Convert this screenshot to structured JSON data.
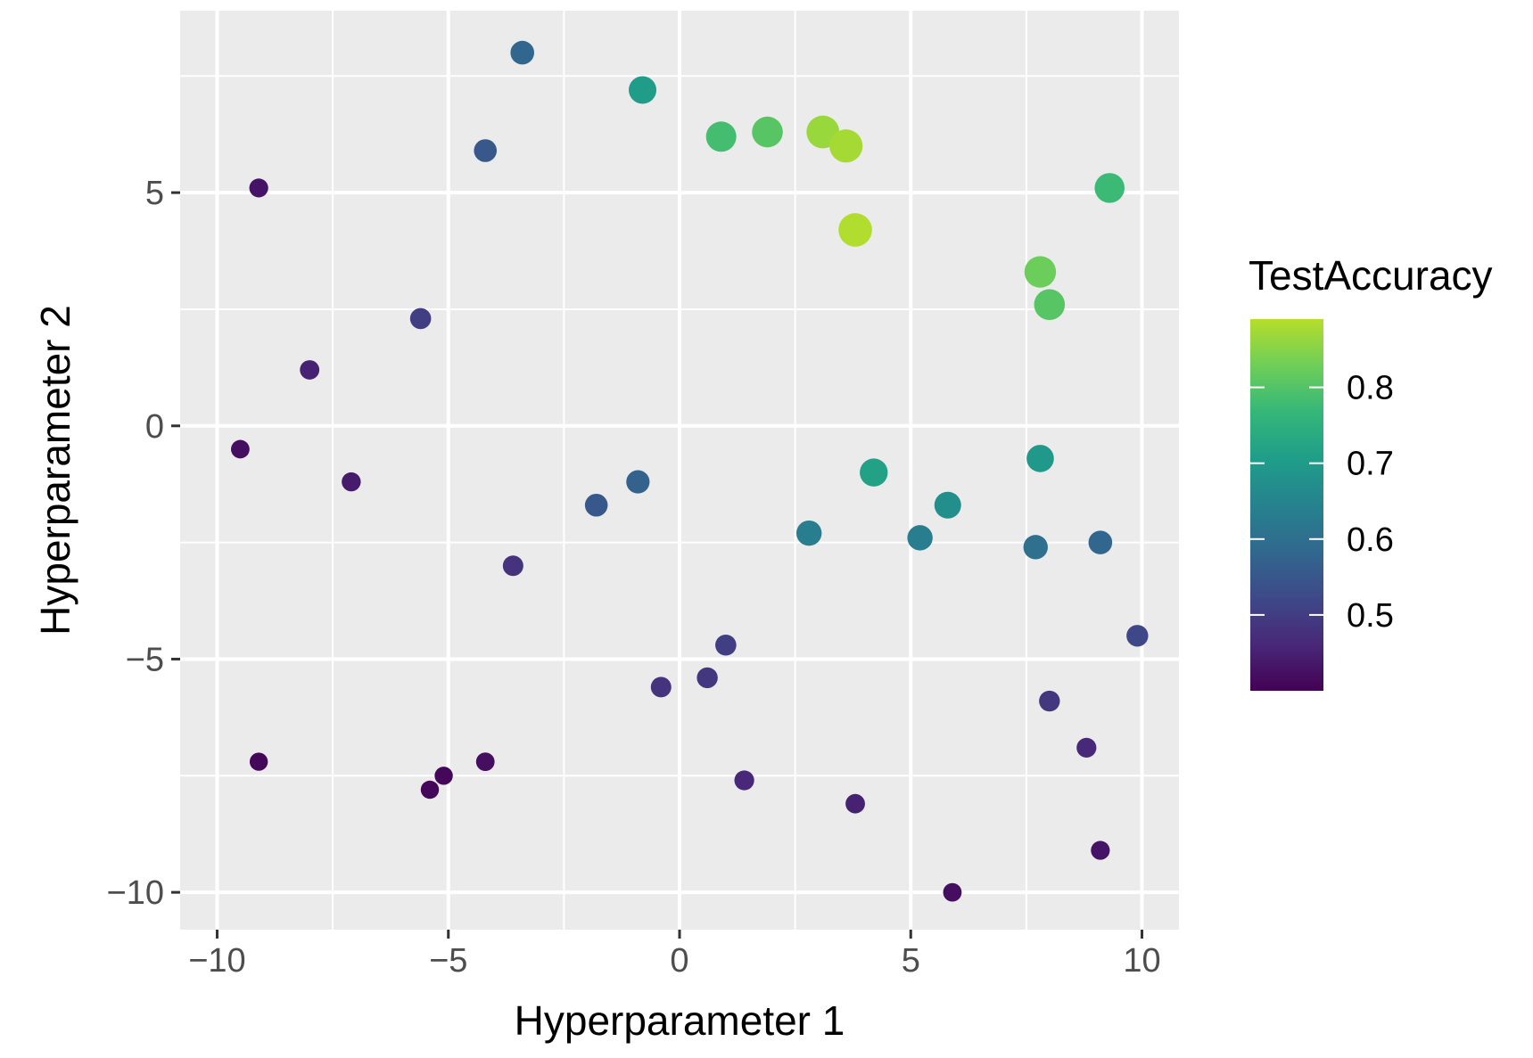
{
  "chart_data": {
    "type": "scatter",
    "title": "",
    "xlabel": "Hyperparameter 1",
    "ylabel": "Hyperparameter 2",
    "xlim": [
      -10.8,
      10.8
    ],
    "ylim": [
      -10.8,
      8.9
    ],
    "x_ticks": [
      -10,
      -5,
      0,
      5,
      10
    ],
    "x_tick_labels": [
      "−10",
      "−5",
      "0",
      "5",
      "10"
    ],
    "y_ticks": [
      -10,
      -5,
      0,
      5
    ],
    "y_tick_labels": [
      "−10",
      "−5",
      "0",
      "5"
    ],
    "grid": true,
    "legend": {
      "title": "TestAccuracy",
      "position": "right",
      "range": [
        0.4,
        0.89
      ],
      "ticks": [
        0.5,
        0.6,
        0.7,
        0.8
      ],
      "tick_labels": [
        "0.5",
        "0.6",
        "0.7",
        "0.8"
      ]
    },
    "colors": {
      "panel_background": "#ebebeb",
      "grid": "#ffffff",
      "viridis": [
        "#440154",
        "#482878",
        "#3e4989",
        "#31688e",
        "#26828e",
        "#1f9e89",
        "#35b779",
        "#6ece58",
        "#b5de2b",
        "#fde725"
      ]
    },
    "points": [
      {
        "x": -9.1,
        "y": 5.1,
        "acc": 0.43
      },
      {
        "x": -3.4,
        "y": 8.0,
        "acc": 0.58
      },
      {
        "x": -0.8,
        "y": 7.2,
        "acc": 0.7
      },
      {
        "x": -4.2,
        "y": 5.9,
        "acc": 0.55
      },
      {
        "x": 0.9,
        "y": 6.2,
        "acc": 0.78
      },
      {
        "x": 1.9,
        "y": 6.3,
        "acc": 0.8
      },
      {
        "x": 3.1,
        "y": 6.3,
        "acc": 0.86
      },
      {
        "x": 3.6,
        "y": 6.0,
        "acc": 0.87
      },
      {
        "x": 3.8,
        "y": 4.2,
        "acc": 0.88
      },
      {
        "x": 9.3,
        "y": 5.1,
        "acc": 0.77
      },
      {
        "x": 7.8,
        "y": 3.3,
        "acc": 0.82
      },
      {
        "x": 8.0,
        "y": 2.6,
        "acc": 0.8
      },
      {
        "x": -5.6,
        "y": 2.3,
        "acc": 0.5
      },
      {
        "x": -8.0,
        "y": 1.2,
        "acc": 0.45
      },
      {
        "x": -9.5,
        "y": -0.5,
        "acc": 0.42
      },
      {
        "x": -7.1,
        "y": -1.2,
        "acc": 0.44
      },
      {
        "x": -0.9,
        "y": -1.2,
        "acc": 0.57
      },
      {
        "x": -1.8,
        "y": -1.7,
        "acc": 0.55
      },
      {
        "x": -3.6,
        "y": -3.0,
        "acc": 0.48
      },
      {
        "x": 4.2,
        "y": -1.0,
        "acc": 0.71
      },
      {
        "x": 7.8,
        "y": -0.7,
        "acc": 0.69
      },
      {
        "x": 5.8,
        "y": -1.7,
        "acc": 0.67
      },
      {
        "x": 2.8,
        "y": -2.3,
        "acc": 0.63
      },
      {
        "x": 5.2,
        "y": -2.4,
        "acc": 0.63
      },
      {
        "x": 7.7,
        "y": -2.6,
        "acc": 0.6
      },
      {
        "x": 9.1,
        "y": -2.5,
        "acc": 0.58
      },
      {
        "x": 9.9,
        "y": -4.5,
        "acc": 0.52
      },
      {
        "x": 1.0,
        "y": -4.7,
        "acc": 0.5
      },
      {
        "x": 0.6,
        "y": -5.4,
        "acc": 0.49
      },
      {
        "x": -0.4,
        "y": -5.6,
        "acc": 0.48
      },
      {
        "x": 8.0,
        "y": -5.9,
        "acc": 0.49
      },
      {
        "x": 8.8,
        "y": -6.9,
        "acc": 0.46
      },
      {
        "x": -9.1,
        "y": -7.2,
        "acc": 0.41
      },
      {
        "x": -5.1,
        "y": -7.5,
        "acc": 0.41
      },
      {
        "x": -5.4,
        "y": -7.8,
        "acc": 0.41
      },
      {
        "x": -4.2,
        "y": -7.2,
        "acc": 0.42
      },
      {
        "x": 1.4,
        "y": -7.6,
        "acc": 0.46
      },
      {
        "x": 3.8,
        "y": -8.1,
        "acc": 0.45
      },
      {
        "x": 9.1,
        "y": -9.1,
        "acc": 0.43
      },
      {
        "x": 5.9,
        "y": -10.0,
        "acc": 0.42
      }
    ]
  }
}
